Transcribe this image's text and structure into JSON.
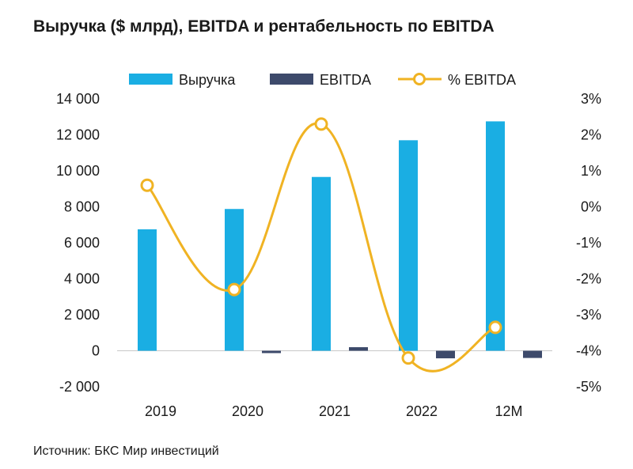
{
  "title": "Выручка ($ млрд), EBITDA и рентабельность по EBITDA",
  "source": "Источник: БКС Мир инвестиций",
  "colors": {
    "revenue": "#1aaee3",
    "ebitda": "#3d4a6b",
    "margin": "#f0b323",
    "axis": "#c8c8c8"
  },
  "chart_data": {
    "type": "bar",
    "categories": [
      "2019",
      "2020",
      "2021",
      "2022",
      "12M"
    ],
    "series": [
      {
        "name": "Выручка",
        "type": "bar",
        "axis": "left",
        "values": [
          6750,
          7880,
          9660,
          11700,
          12750
        ]
      },
      {
        "name": "EBITDA",
        "type": "bar",
        "axis": "left",
        "values": [
          0,
          -130,
          200,
          -420,
          -400
        ]
      },
      {
        "name": "% EBITDA",
        "type": "line",
        "axis": "right",
        "values": [
          0.6,
          -2.3,
          2.3,
          -4.2,
          -3.35
        ]
      }
    ],
    "y_left": {
      "ylim": [
        -2000,
        14000
      ],
      "ticks": [
        14000,
        12000,
        10000,
        8000,
        6000,
        4000,
        2000,
        0,
        -2000
      ],
      "tick_labels": [
        "14 000",
        "12 000",
        "10 000",
        "8 000",
        "6 000",
        "4 000",
        "2 000",
        "0",
        "-2 000"
      ]
    },
    "y_right": {
      "ylim": [
        -5,
        3
      ],
      "ticks": [
        3,
        2,
        1,
        0,
        -1,
        -2,
        -3,
        -4,
        -5
      ],
      "tick_labels": [
        "3%",
        "2%",
        "1%",
        "0%",
        "-1%",
        "-2%",
        "-3%",
        "-4%",
        "-5%"
      ]
    },
    "legend_position": "top",
    "grid": false
  }
}
